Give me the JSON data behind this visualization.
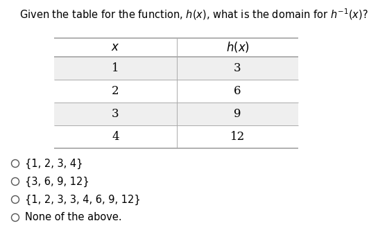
{
  "title": "Given the table for the function, $h(x)$, what is the domain for $h^{-1}(x)$?",
  "col_header_x": "$x$",
  "col_header_hx": "$h(x)$",
  "table_data": [
    [
      "1",
      "3"
    ],
    [
      "2",
      "6"
    ],
    [
      "3",
      "9"
    ],
    [
      "4",
      "12"
    ]
  ],
  "options": [
    "{1, 2, 3, 4}",
    "{3, 6, 9, 12}",
    "{1, 2, 3, 3, 4, 6, 9, 12}",
    "None of the above."
  ],
  "bg_color_odd": "#efefef",
  "bg_color_even": "#ffffff",
  "table_line_color": "#aaaaaa",
  "title_fontsize": 10.5,
  "header_fontsize": 12,
  "table_fontsize": 12,
  "option_fontsize": 10.5,
  "fig_width": 5.58,
  "fig_height": 3.58,
  "dpi": 100
}
